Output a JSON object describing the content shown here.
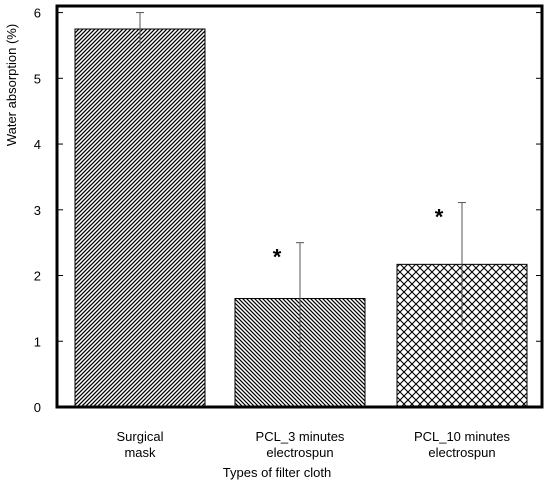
{
  "chart_data": {
    "type": "bar",
    "xlabel": "Types of filter cloth",
    "ylabel": "Water absorption (%)",
    "ylim": [
      0,
      6.1
    ],
    "yticks": [
      0,
      1,
      2,
      3,
      4,
      5,
      6
    ],
    "categories": [
      [
        "Surgical",
        "mask"
      ],
      [
        "PCL_3 minutes",
        "electrospun"
      ],
      [
        "PCL_10 minutes",
        "electrospun"
      ]
    ],
    "values": [
      5.75,
      1.65,
      2.17
    ],
    "errors": [
      0.25,
      0.85,
      0.94
    ],
    "significance": [
      "",
      "*",
      "*"
    ],
    "patterns": [
      "diagonal-dense",
      "diagonal",
      "crosshatch"
    ],
    "grid": false,
    "legend": "none"
  }
}
